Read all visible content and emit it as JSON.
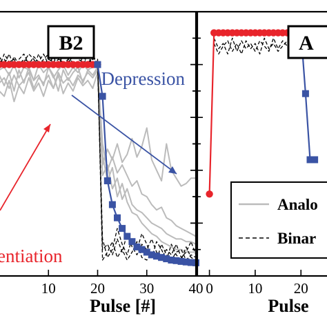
{
  "chart_data": [
    {
      "type": "line",
      "panel_label": "B2",
      "xlabel": "Pulse [#]",
      "x_ticks": [
        10,
        20,
        30,
        40
      ],
      "xlim": [
        0,
        40
      ],
      "ylim": [
        0,
        1
      ],
      "annotations": [
        {
          "text": "Depression",
          "color": "#3a53a4"
        },
        {
          "text": "entiation",
          "color": "#e8242b"
        }
      ],
      "x": [
        0,
        1,
        2,
        3,
        4,
        5,
        6,
        7,
        8,
        9,
        10,
        11,
        12,
        13,
        14,
        15,
        16,
        17,
        18,
        19,
        20,
        21,
        22,
        23,
        24,
        25,
        26,
        27,
        28,
        29,
        30,
        31,
        32,
        33,
        34,
        35,
        36,
        37,
        38,
        39,
        40
      ],
      "series": [
        {
          "color": "#e8242b",
          "marker": "circle",
          "values": [
            0.8,
            0.8,
            0.8,
            0.8,
            0.8,
            0.8,
            0.8,
            0.8,
            0.8,
            0.8,
            0.8,
            0.8,
            0.8,
            0.8,
            0.8,
            0.8,
            0.8,
            0.8,
            0.8,
            0.8,
            0.8,
            null,
            null,
            null,
            null,
            null,
            null,
            null,
            null,
            null,
            null,
            null,
            null,
            null,
            null,
            null,
            null,
            null,
            null,
            null,
            null
          ]
        },
        {
          "color": "#3a53a4",
          "marker": "square",
          "values": [
            null,
            null,
            null,
            null,
            null,
            null,
            null,
            null,
            null,
            null,
            null,
            null,
            null,
            null,
            null,
            null,
            null,
            null,
            null,
            null,
            0.8,
            0.68,
            0.36,
            0.27,
            0.22,
            0.18,
            0.15,
            0.13,
            0.11,
            0.1,
            0.09,
            0.08,
            0.075,
            0.07,
            0.065,
            0.06,
            0.058,
            0.055,
            0.053,
            0.051,
            0.05
          ]
        },
        {
          "color": "#bbbbbb",
          "style": "solid",
          "values": [
            0.78,
            0.79,
            0.76,
            0.8,
            0.75,
            0.79,
            0.78,
            0.74,
            0.8,
            0.77,
            0.79,
            0.75,
            0.78,
            0.8,
            0.76,
            0.79,
            0.77,
            0.8,
            0.78,
            0.79,
            0.8,
            0.42,
            0.48,
            0.44,
            0.5,
            0.43,
            0.46,
            0.52,
            0.45,
            0.49,
            0.56,
            0.44,
            0.4,
            0.36,
            0.5,
            0.4,
            0.37,
            0.34,
            0.35,
            0.37,
            0.37
          ]
        },
        {
          "color": "#bbbbbb",
          "style": "solid",
          "values": [
            0.76,
            0.72,
            0.77,
            0.7,
            0.78,
            0.73,
            0.79,
            0.74,
            0.76,
            0.72,
            0.79,
            0.76,
            0.7,
            0.78,
            0.74,
            0.77,
            0.79,
            0.73,
            0.78,
            0.76,
            0.79,
            0.5,
            0.4,
            0.45,
            0.39,
            0.42,
            0.38,
            0.34,
            0.36,
            0.31,
            0.3,
            0.27,
            0.25,
            0.26,
            0.22,
            0.21,
            0.19,
            0.18,
            0.17,
            0.16,
            0.15
          ]
        },
        {
          "color": "#bbbbbb",
          "style": "solid",
          "values": [
            0.73,
            0.75,
            0.71,
            0.76,
            0.72,
            0.74,
            0.77,
            0.71,
            0.75,
            0.73,
            0.76,
            0.71,
            0.77,
            0.73,
            0.75,
            0.72,
            0.76,
            0.74,
            0.77,
            0.75,
            0.78,
            0.38,
            0.42,
            0.33,
            0.37,
            0.29,
            0.33,
            0.27,
            0.25,
            0.24,
            0.22,
            0.2,
            0.19,
            0.18,
            0.16,
            0.15,
            0.14,
            0.14,
            0.13,
            0.13,
            0.12
          ]
        },
        {
          "color": "#bbbbbb",
          "style": "solid",
          "values": [
            0.7,
            0.68,
            0.74,
            0.66,
            0.72,
            0.69,
            0.75,
            0.7,
            0.73,
            0.68,
            0.74,
            0.71,
            0.76,
            0.69,
            0.73,
            0.7,
            0.75,
            0.72,
            0.74,
            0.71,
            0.77,
            0.46,
            0.36,
            0.41,
            0.3,
            0.35,
            0.28,
            0.24,
            0.23,
            0.2,
            0.18,
            0.16,
            0.15,
            0.13,
            0.12,
            0.11,
            0.1,
            0.1,
            0.09,
            0.09,
            0.09
          ]
        },
        {
          "color": "#000000",
          "style": "dashed",
          "values": [
            0.81,
            0.82,
            0.79,
            0.83,
            0.8,
            0.82,
            0.81,
            0.79,
            0.84,
            0.8,
            0.82,
            0.81,
            0.83,
            0.8,
            0.82,
            0.81,
            0.79,
            0.83,
            0.81,
            0.82,
            0.82,
            0.1,
            0.12,
            0.08,
            0.14,
            0.09,
            0.16,
            0.11,
            0.08,
            0.12,
            0.1,
            0.14,
            0.09,
            0.07,
            0.1,
            0.08,
            0.12,
            0.07,
            0.09,
            0.13,
            0.08
          ]
        },
        {
          "color": "#000000",
          "style": "dashed",
          "values": [
            0.83,
            0.8,
            0.84,
            0.79,
            0.82,
            0.84,
            0.8,
            0.83,
            0.81,
            0.84,
            0.8,
            0.83,
            0.79,
            0.84,
            0.81,
            0.83,
            0.84,
            0.8,
            0.83,
            0.8,
            0.81,
            0.06,
            0.09,
            0.13,
            0.07,
            0.1,
            0.06,
            0.09,
            0.13,
            0.07,
            0.06,
            0.09,
            0.06,
            0.12,
            0.08,
            0.06,
            0.09,
            0.1,
            0.06,
            0.08,
            0.07
          ]
        },
        {
          "color": "#000000",
          "style": "dashed",
          "values": [
            0.79,
            0.84,
            0.81,
            0.82,
            0.79,
            0.81,
            0.84,
            0.82,
            0.79,
            0.82,
            0.84,
            0.8,
            0.82,
            0.81,
            0.8,
            0.84,
            0.82,
            0.81,
            0.79,
            0.84,
            0.8,
            0.14,
            0.07,
            0.1,
            0.18,
            0.12,
            0.08,
            0.14,
            0.1,
            0.16,
            0.12,
            0.07,
            0.13,
            0.1,
            0.06,
            0.12,
            0.08,
            0.06,
            0.11,
            0.07,
            0.06
          ]
        }
      ]
    },
    {
      "type": "line",
      "panel_label": "A",
      "xlabel": "Pulse",
      "x_ticks": [
        0,
        10,
        20
      ],
      "xlim": [
        -2.5,
        27.5
      ],
      "ylim": [
        0,
        1
      ],
      "legend": {
        "position": "lower-right",
        "entries": [
          {
            "label": "Analo",
            "style": "solid",
            "color": "#bbbbbb"
          },
          {
            "label": "Binar",
            "style": "dashed",
            "color": "#000000"
          }
        ]
      },
      "x": [
        0,
        1,
        2,
        3,
        4,
        5,
        6,
        7,
        8,
        9,
        10,
        11,
        12,
        13,
        14,
        15,
        16,
        17,
        18,
        19,
        20,
        21,
        22,
        23
      ],
      "series": [
        {
          "color": "#e8242b",
          "marker": "circle",
          "values": [
            0.31,
            0.92,
            0.92,
            0.92,
            0.92,
            0.92,
            0.92,
            0.92,
            0.92,
            0.92,
            0.92,
            0.92,
            0.92,
            0.92,
            0.92,
            0.92,
            0.92,
            0.92,
            0.92,
            0.92,
            0.92,
            null,
            null,
            null
          ]
        },
        {
          "color": "#3a53a4",
          "marker": "square",
          "values": [
            null,
            null,
            null,
            null,
            null,
            null,
            null,
            null,
            null,
            null,
            null,
            null,
            null,
            null,
            null,
            null,
            null,
            null,
            null,
            null,
            0.92,
            0.69,
            0.44,
            0.44
          ]
        },
        {
          "color": "#000000",
          "style": "dashed",
          "values": [
            null,
            0.9,
            0.86,
            0.88,
            0.84,
            0.9,
            0.85,
            0.89,
            0.86,
            0.88,
            0.85,
            0.89,
            0.87,
            0.85,
            0.9,
            0.86,
            0.89,
            0.87,
            0.85,
            0.89,
            0.88,
            null,
            null,
            null
          ]
        },
        {
          "color": "#000000",
          "style": "dashed",
          "values": [
            null,
            0.88,
            0.84,
            0.87,
            0.89,
            0.85,
            0.88,
            0.84,
            0.89,
            0.86,
            0.88,
            0.84,
            0.9,
            0.86,
            0.88,
            0.85,
            0.87,
            0.89,
            0.86,
            0.88,
            0.87,
            null,
            null,
            null
          ]
        }
      ]
    }
  ]
}
